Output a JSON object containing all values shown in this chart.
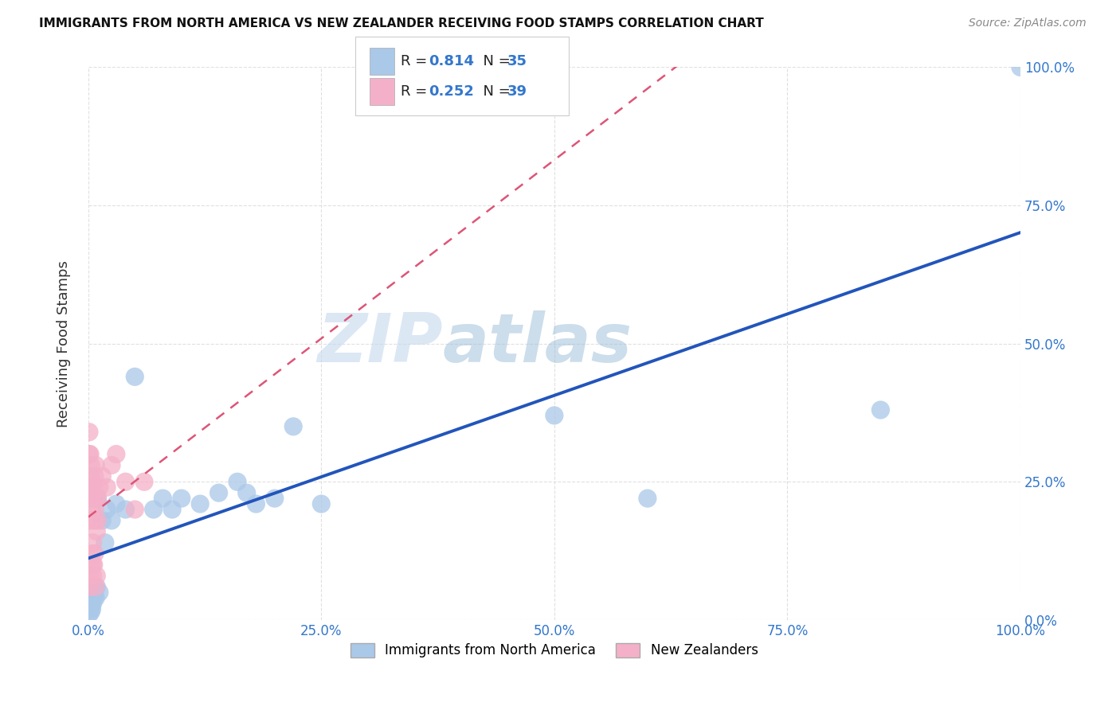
{
  "title": "IMMIGRANTS FROM NORTH AMERICA VS NEW ZEALANDER RECEIVING FOOD STAMPS CORRELATION CHART",
  "source": "Source: ZipAtlas.com",
  "ylabel": "Receiving Food Stamps",
  "blue_R": 0.814,
  "blue_N": 35,
  "pink_R": 0.252,
  "pink_N": 39,
  "blue_color": "#aac8e8",
  "pink_color": "#f4b0c8",
  "blue_line_color": "#2255bb",
  "pink_line_color": "#dd5577",
  "watermark_zip": "ZIP",
  "watermark_atlas": "atlas",
  "xlim": [
    0,
    1.0
  ],
  "ylim": [
    0,
    1.0
  ],
  "background_color": "#ffffff",
  "grid_color": "#dddddd",
  "blue_points_x": [
    0.001,
    0.002,
    0.003,
    0.003,
    0.004,
    0.005,
    0.006,
    0.007,
    0.008,
    0.009,
    0.01,
    0.012,
    0.015,
    0.018,
    0.02,
    0.025,
    0.03,
    0.04,
    0.05,
    0.07,
    0.08,
    0.09,
    0.1,
    0.12,
    0.14,
    0.16,
    0.17,
    0.18,
    0.2,
    0.22,
    0.25,
    0.5,
    0.6,
    0.85,
    1.0
  ],
  "blue_points_y": [
    0.01,
    0.02,
    0.015,
    0.025,
    0.02,
    0.03,
    0.04,
    0.05,
    0.04,
    0.06,
    0.22,
    0.05,
    0.18,
    0.14,
    0.2,
    0.18,
    0.21,
    0.2,
    0.44,
    0.2,
    0.22,
    0.2,
    0.22,
    0.21,
    0.23,
    0.25,
    0.23,
    0.21,
    0.22,
    0.35,
    0.21,
    0.37,
    0.22,
    0.38,
    1.0
  ],
  "pink_points_x": [
    0.001,
    0.001,
    0.002,
    0.002,
    0.002,
    0.003,
    0.003,
    0.003,
    0.004,
    0.004,
    0.005,
    0.005,
    0.005,
    0.006,
    0.006,
    0.007,
    0.007,
    0.008,
    0.008,
    0.009,
    0.01,
    0.01,
    0.012,
    0.015,
    0.02,
    0.025,
    0.03,
    0.04,
    0.05,
    0.06,
    0.001,
    0.002,
    0.003,
    0.004,
    0.005,
    0.006,
    0.007,
    0.008,
    0.009
  ],
  "pink_points_y": [
    0.3,
    0.34,
    0.26,
    0.3,
    0.22,
    0.18,
    0.24,
    0.28,
    0.2,
    0.25,
    0.1,
    0.14,
    0.22,
    0.18,
    0.24,
    0.2,
    0.26,
    0.22,
    0.28,
    0.16,
    0.18,
    0.22,
    0.24,
    0.26,
    0.24,
    0.28,
    0.3,
    0.25,
    0.2,
    0.25,
    0.06,
    0.08,
    0.1,
    0.12,
    0.08,
    0.1,
    0.12,
    0.06,
    0.08
  ]
}
